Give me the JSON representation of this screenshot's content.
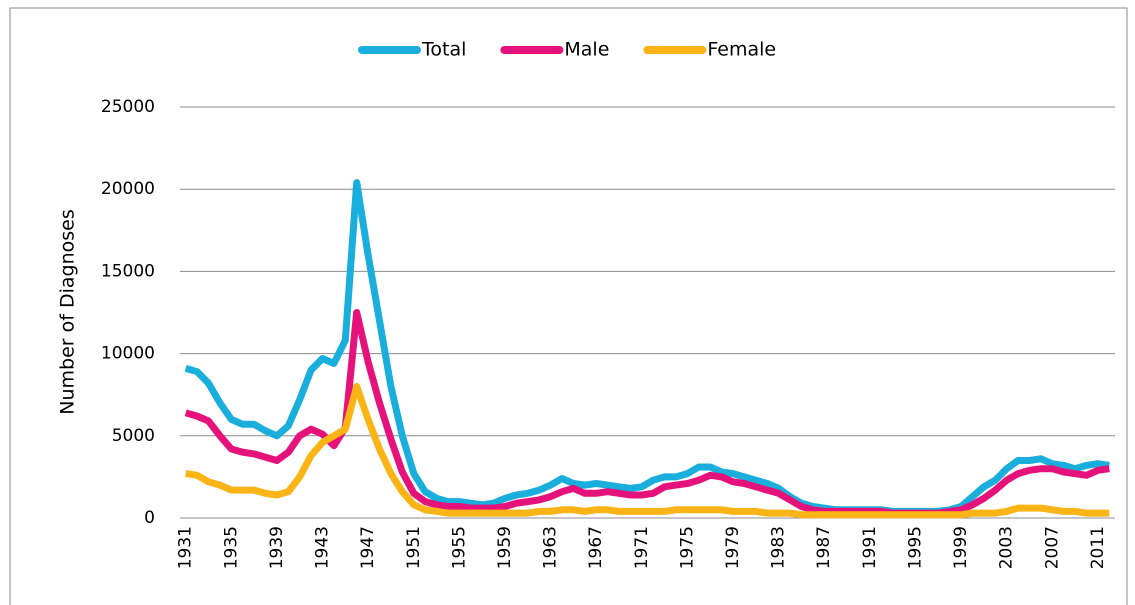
{
  "chart_data": {
    "type": "line",
    "ylabel": "Number of Diagnoses",
    "categories": [
      "1931",
      null,
      null,
      null,
      "1935",
      null,
      null,
      null,
      "1939",
      null,
      null,
      null,
      "1943",
      null,
      null,
      null,
      "1947",
      null,
      null,
      null,
      "1951",
      null,
      null,
      null,
      "1955",
      null,
      null,
      null,
      "1959",
      null,
      null,
      null,
      "1963",
      null,
      null,
      null,
      "1967",
      null,
      null,
      null,
      "1971",
      null,
      null,
      null,
      "1975",
      null,
      null,
      null,
      "1979",
      null,
      null,
      null,
      "1983",
      null,
      null,
      null,
      "1987",
      null,
      null,
      null,
      "1991",
      null,
      null,
      null,
      "1995",
      null,
      null,
      null,
      "1999",
      null,
      null,
      null,
      "2003",
      null,
      null,
      null,
      "2007",
      null,
      null,
      null,
      "2011",
      null
    ],
    "series": [
      {
        "name": "Total",
        "color": "#1aaedc",
        "values": [
          9100,
          8900,
          8200,
          7000,
          6000,
          5700,
          5700,
          5300,
          5000,
          5600,
          7200,
          9000,
          9700,
          9400,
          10800,
          20400,
          16000,
          12000,
          8000,
          5000,
          2700,
          1600,
          1200,
          1000,
          1000,
          900,
          800,
          900,
          1200,
          1400,
          1500,
          1700,
          2000,
          2400,
          2100,
          2000,
          2100,
          2000,
          1900,
          1800,
          1900,
          2300,
          2500,
          2500,
          2700,
          3100,
          3100,
          2800,
          2700,
          2500,
          2300,
          2100,
          1800,
          1300,
          900,
          700,
          600,
          500,
          500,
          500,
          500,
          500,
          400,
          400,
          400,
          400,
          400,
          500,
          700,
          1300,
          1900,
          2300,
          3000,
          3500,
          3500,
          3600,
          3300,
          3200,
          3000,
          3200,
          3300,
          3200
        ]
      },
      {
        "name": "Male",
        "color": "#e6127c",
        "values": [
          6400,
          6200,
          5900,
          5000,
          4200,
          4000,
          3900,
          3700,
          3500,
          4000,
          5000,
          5400,
          5100,
          4400,
          5500,
          12500,
          9500,
          7000,
          4800,
          2800,
          1500,
          1000,
          800,
          700,
          700,
          600,
          600,
          600,
          700,
          900,
          1000,
          1100,
          1300,
          1600,
          1800,
          1500,
          1500,
          1600,
          1500,
          1400,
          1400,
          1500,
          1900,
          2000,
          2100,
          2300,
          2600,
          2500,
          2200,
          2100,
          1900,
          1700,
          1500,
          1100,
          700,
          500,
          400,
          400,
          400,
          400,
          400,
          400,
          300,
          300,
          300,
          300,
          300,
          400,
          500,
          800,
          1200,
          1700,
          2300,
          2700,
          2900,
          3000,
          3000,
          2800,
          2700,
          2600,
          2900,
          3000
        ]
      },
      {
        "name": "Female",
        "color": "#fbb416",
        "values": [
          2700,
          2600,
          2200,
          2000,
          1700,
          1700,
          1700,
          1500,
          1400,
          1600,
          2500,
          3800,
          4600,
          5000,
          5400,
          8000,
          6000,
          4200,
          2700,
          1600,
          800,
          500,
          400,
          300,
          300,
          300,
          300,
          300,
          300,
          300,
          300,
          400,
          400,
          500,
          500,
          400,
          500,
          500,
          400,
          400,
          400,
          400,
          400,
          500,
          500,
          500,
          500,
          500,
          400,
          400,
          400,
          300,
          300,
          300,
          200,
          200,
          200,
          200,
          200,
          200,
          200,
          200,
          200,
          200,
          200,
          200,
          200,
          200,
          200,
          300,
          300,
          300,
          400,
          600,
          600,
          600,
          500,
          400,
          400,
          300,
          300,
          300
        ]
      }
    ],
    "ylim": [
      0,
      25000
    ],
    "yticks": [
      0,
      5000,
      10000,
      15000,
      20000,
      25000
    ],
    "grid": true,
    "legend": "top"
  }
}
